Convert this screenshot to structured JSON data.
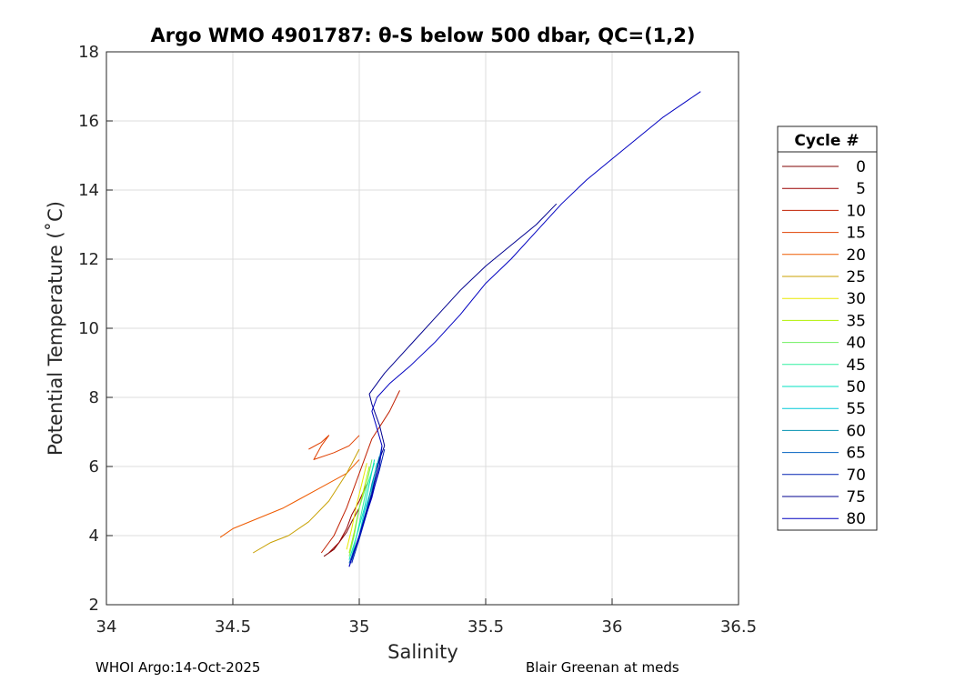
{
  "chart_data": {
    "type": "line",
    "title": "Argo WMO 4901787: θ-S below 500 dbar,  QC=(1,2)",
    "xlabel": "Salinity",
    "ylabel": "Potential Temperature (˚C)",
    "xlim": [
      34,
      36.5
    ],
    "ylim": [
      2,
      18
    ],
    "xticks": [
      "34",
      "34.5",
      "35",
      "35.5",
      "36",
      "36.5"
    ],
    "yticks": [
      "2",
      "4",
      "6",
      "8",
      "10",
      "12",
      "14",
      "16",
      "18"
    ],
    "grid": true,
    "legend": {
      "title": "Cycle #",
      "placement": "right"
    },
    "colors": [
      "#7f0000",
      "#9a0000",
      "#c01f00",
      "#e04000",
      "#ee5a00",
      "#c8a000",
      "#e8e800",
      "#b0f000",
      "#70f060",
      "#30f0a0",
      "#00e0c0",
      "#00c8d8",
      "#0090b0",
      "#0060c0",
      "#0020b0",
      "#00008f",
      "#0000c0"
    ],
    "series": [
      {
        "name": "0",
        "x": [
          34.86,
          34.9,
          34.92,
          34.95,
          34.97,
          35.0
        ],
        "y": [
          3.4,
          3.6,
          3.8,
          4.1,
          4.4,
          4.8
        ]
      },
      {
        "name": "5",
        "x": [
          34.88,
          34.92,
          34.95,
          34.97,
          35.0,
          35.03
        ],
        "y": [
          3.5,
          3.8,
          4.2,
          4.6,
          5.0,
          5.5
        ]
      },
      {
        "name": "10",
        "x": [
          34.85,
          34.9,
          34.95,
          35.0,
          35.05,
          35.12,
          35.16
        ],
        "y": [
          3.5,
          4.0,
          4.8,
          5.8,
          6.8,
          7.6,
          8.2
        ]
      },
      {
        "name": "15",
        "x": [
          34.8,
          34.85,
          34.88,
          34.85,
          34.82,
          34.9,
          34.96,
          35.0
        ],
        "y": [
          6.5,
          6.7,
          6.9,
          6.6,
          6.2,
          6.4,
          6.6,
          6.9
        ]
      },
      {
        "name": "20",
        "x": [
          34.45,
          34.5,
          34.6,
          34.7,
          34.75,
          34.85,
          34.9,
          34.95,
          35.0
        ],
        "y": [
          3.95,
          4.2,
          4.5,
          4.8,
          5.0,
          5.4,
          5.6,
          5.8,
          6.2
        ]
      },
      {
        "name": "25",
        "x": [
          34.58,
          34.65,
          34.72,
          34.8,
          34.88,
          34.95,
          35.0
        ],
        "y": [
          3.5,
          3.8,
          4.0,
          4.4,
          5.0,
          5.8,
          6.5
        ]
      },
      {
        "name": "30",
        "x": [
          34.95,
          34.97,
          34.99,
          35.01,
          35.03
        ],
        "y": [
          3.6,
          4.2,
          4.9,
          5.5,
          6.1
        ]
      },
      {
        "name": "35",
        "x": [
          34.96,
          34.98,
          35.0,
          35.02,
          35.04
        ],
        "y": [
          3.5,
          4.1,
          4.8,
          5.4,
          6.0
        ]
      },
      {
        "name": "40",
        "x": [
          34.96,
          34.98,
          35.0,
          35.03,
          35.05
        ],
        "y": [
          3.4,
          4.0,
          4.8,
          5.5,
          6.2
        ]
      },
      {
        "name": "45",
        "x": [
          34.97,
          34.99,
          35.01,
          35.03,
          35.06
        ],
        "y": [
          3.4,
          4.0,
          4.7,
          5.4,
          6.1
        ]
      },
      {
        "name": "50",
        "x": [
          34.96,
          34.99,
          35.02,
          35.04,
          35.06
        ],
        "y": [
          3.3,
          4.0,
          4.8,
          5.5,
          6.2
        ]
      },
      {
        "name": "55",
        "x": [
          34.97,
          35.0,
          35.02,
          35.05,
          35.07
        ],
        "y": [
          3.3,
          4.0,
          4.7,
          5.4,
          6.1
        ]
      },
      {
        "name": "60",
        "x": [
          34.97,
          35.0,
          35.03,
          35.05,
          35.08
        ],
        "y": [
          3.3,
          4.0,
          4.8,
          5.5,
          6.3
        ]
      },
      {
        "name": "65",
        "x": [
          34.96,
          35.0,
          35.04,
          35.07,
          35.09
        ],
        "y": [
          3.2,
          4.0,
          5.0,
          5.9,
          6.6
        ]
      },
      {
        "name": "70",
        "x": [
          34.97,
          35.0,
          35.04,
          35.08,
          35.1
        ],
        "y": [
          3.2,
          3.9,
          4.9,
          5.9,
          6.5
        ]
      },
      {
        "name": "75",
        "x": [
          34.96,
          35.0,
          35.05,
          35.08,
          35.1,
          35.08,
          35.05,
          35.04,
          35.1,
          35.2,
          35.3,
          35.4,
          35.5,
          35.6,
          35.7,
          35.78
        ],
        "y": [
          3.1,
          4.0,
          5.2,
          6.2,
          6.6,
          7.2,
          7.8,
          8.1,
          8.7,
          9.5,
          10.3,
          11.1,
          11.8,
          12.4,
          13.0,
          13.6
        ]
      },
      {
        "name": "80",
        "x": [
          34.96,
          35.0,
          35.05,
          35.08,
          35.09,
          35.07,
          35.05,
          35.07,
          35.12,
          35.2,
          35.3,
          35.4,
          35.5,
          35.6,
          35.7,
          35.8,
          35.9,
          36.0,
          36.1,
          36.2,
          36.3,
          36.35
        ],
        "y": [
          3.1,
          4.0,
          5.1,
          6.0,
          6.6,
          7.1,
          7.6,
          8.0,
          8.4,
          8.9,
          9.6,
          10.4,
          11.3,
          12.0,
          12.8,
          13.6,
          14.3,
          14.9,
          15.5,
          16.1,
          16.6,
          16.85
        ]
      }
    ]
  },
  "footer": {
    "left": "WHOI Argo:14-Oct-2025",
    "right": "Blair Greenan at meds"
  }
}
